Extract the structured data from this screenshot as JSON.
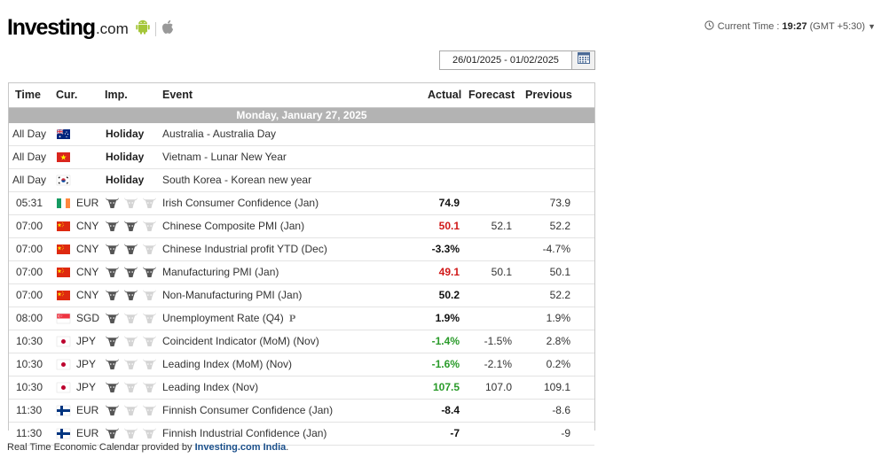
{
  "header": {
    "logo_main": "Investing",
    "logo_suffix": ".com",
    "current_time_label": "Current Time :",
    "current_time_value": "19:27",
    "current_time_zone": "(GMT +5:30)",
    "colors": {
      "android": "#a4c639",
      "apple": "#999999"
    }
  },
  "date_range": "26/01/2025 - 01/02/2025",
  "table": {
    "headers": {
      "time": "Time",
      "cur": "Cur.",
      "imp": "Imp.",
      "event": "Event",
      "actual": "Actual",
      "forecast": "Forecast",
      "previous": "Previous"
    },
    "day_label": "Monday, January 27, 2025",
    "holidays": [
      {
        "time": "All Day",
        "flag": "au",
        "label": "Holiday",
        "event": "Australia - Australia Day"
      },
      {
        "time": "All Day",
        "flag": "vn",
        "label": "Holiday",
        "event": "Vietnam - Lunar New Year"
      },
      {
        "time": "All Day",
        "flag": "kr",
        "label": "Holiday",
        "event": "South Korea - Korean new year"
      }
    ],
    "events": [
      {
        "time": "05:31",
        "flag": "ie",
        "cur": "EUR",
        "imp": 1,
        "event": "Irish Consumer Confidence (Jan)",
        "prelim": "",
        "actual": "74.9",
        "actual_color": "black",
        "forecast": "",
        "previous": "73.9"
      },
      {
        "time": "07:00",
        "flag": "cn",
        "cur": "CNY",
        "imp": 2,
        "event": "Chinese Composite PMI (Jan)",
        "prelim": "",
        "actual": "50.1",
        "actual_color": "red",
        "forecast": "52.1",
        "previous": "52.2"
      },
      {
        "time": "07:00",
        "flag": "cn",
        "cur": "CNY",
        "imp": 2,
        "event": "Chinese Industrial profit YTD (Dec)",
        "prelim": "",
        "actual": "-3.3%",
        "actual_color": "black",
        "forecast": "",
        "previous": "-4.7%"
      },
      {
        "time": "07:00",
        "flag": "cn",
        "cur": "CNY",
        "imp": 3,
        "event": "Manufacturing PMI (Jan)",
        "prelim": "",
        "actual": "49.1",
        "actual_color": "red",
        "forecast": "50.1",
        "previous": "50.1"
      },
      {
        "time": "07:00",
        "flag": "cn",
        "cur": "CNY",
        "imp": 2,
        "event": "Non-Manufacturing PMI (Jan)",
        "prelim": "",
        "actual": "50.2",
        "actual_color": "black",
        "forecast": "",
        "previous": "52.2"
      },
      {
        "time": "08:00",
        "flag": "sg",
        "cur": "SGD",
        "imp": 1,
        "event": "Unemployment Rate (Q4)",
        "prelim": "P",
        "actual": "1.9%",
        "actual_color": "black",
        "forecast": "",
        "previous": "1.9%"
      },
      {
        "time": "10:30",
        "flag": "jp",
        "cur": "JPY",
        "imp": 1,
        "event": "Coincident Indicator (MoM) (Nov)",
        "prelim": "",
        "actual": "-1.4%",
        "actual_color": "green",
        "forecast": "-1.5%",
        "previous": "2.8%"
      },
      {
        "time": "10:30",
        "flag": "jp",
        "cur": "JPY",
        "imp": 1,
        "event": "Leading Index (MoM) (Nov)",
        "prelim": "",
        "actual": "-1.6%",
        "actual_color": "green",
        "forecast": "-2.1%",
        "previous": "0.2%"
      },
      {
        "time": "10:30",
        "flag": "jp",
        "cur": "JPY",
        "imp": 1,
        "event": "Leading Index (Nov)",
        "prelim": "",
        "actual": "107.5",
        "actual_color": "green",
        "forecast": "107.0",
        "previous": "109.1"
      },
      {
        "time": "11:30",
        "flag": "fi",
        "cur": "EUR",
        "imp": 1,
        "event": "Finnish Consumer Confidence (Jan)",
        "prelim": "",
        "actual": "-8.4",
        "actual_color": "black",
        "forecast": "",
        "previous": "-8.6"
      },
      {
        "time": "11:30",
        "flag": "fi",
        "cur": "EUR",
        "imp": 1,
        "event": "Finnish Industrial Confidence (Jan)",
        "prelim": "",
        "actual": "-7",
        "actual_color": "black",
        "forecast": "",
        "previous": "-9"
      }
    ]
  },
  "footer": {
    "text": "Real Time Economic Calendar provided by",
    "link": "Investing.com India",
    "period": "."
  }
}
